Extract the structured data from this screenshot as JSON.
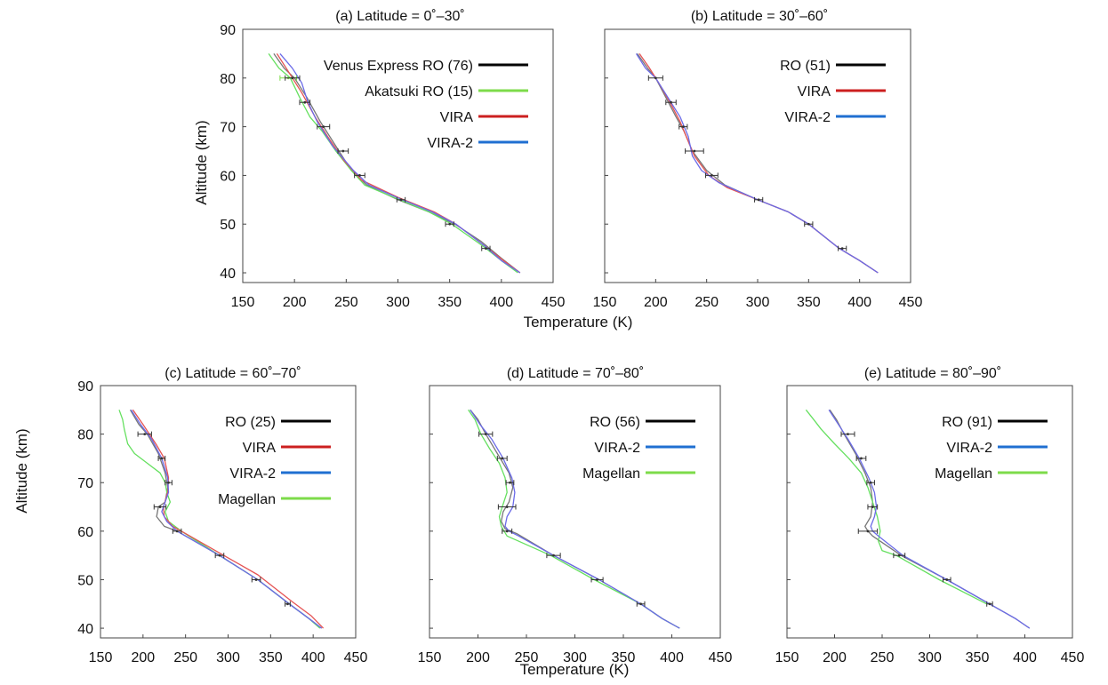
{
  "colors": {
    "RO": "#000000",
    "Akatsuki RO": "#7ddb4a",
    "VIRA": "#cc1f1f",
    "VIRA-2": "#1f6fd1",
    "Magellan": "#7ddb4a",
    "ro_line": "#777777",
    "vira_line": "#e55353",
    "vira2_line": "#6b6be8",
    "magellan_line": "#66e060"
  },
  "chart_data": [
    {
      "type": "line",
      "title": "(a) Latitude = 0˚–30˚",
      "xlabel": "Temperature (K)",
      "ylabel": "Altitude (km)",
      "xlim": [
        150,
        450
      ],
      "ylim": [
        38,
        90
      ],
      "xticks": [
        "150",
        "200",
        "250",
        "300",
        "350",
        "400",
        "450"
      ],
      "yticks": [
        "40",
        "50",
        "60",
        "70",
        "80",
        "90"
      ],
      "legend_position": "top-right",
      "legend": [
        {
          "label": "Venus Express RO (76)",
          "key": "RO"
        },
        {
          "label": "Akatsuki RO (15)",
          "key": "Akatsuki RO"
        },
        {
          "label": "VIRA",
          "key": "VIRA"
        },
        {
          "label": "VIRA-2",
          "key": "VIRA-2"
        }
      ],
      "series": [
        {
          "key": "ro_line",
          "x": [
            180,
            190,
            200,
            212,
            225,
            240,
            255,
            270,
            300,
            330,
            355,
            380,
            400,
            418
          ],
          "y": [
            85,
            82,
            80,
            76,
            71,
            66,
            61,
            58,
            55,
            52.5,
            50,
            46.5,
            43,
            40
          ]
        },
        {
          "key": "magellan_line",
          "x": [
            175,
            185,
            196,
            205,
            215,
            227,
            240,
            255,
            268,
            298,
            330,
            352,
            382,
            400,
            416
          ],
          "y": [
            85,
            82,
            80,
            76,
            72,
            69,
            65,
            61,
            58,
            55.3,
            52.5,
            50,
            45.5,
            42.5,
            40
          ]
        },
        {
          "key": "vira_line",
          "x": [
            183,
            195,
            207,
            220,
            232,
            248,
            265,
            300,
            335,
            356,
            384,
            402,
            418
          ],
          "y": [
            85,
            81,
            77,
            72,
            68,
            63,
            59,
            55.5,
            52.5,
            50,
            45.5,
            42.5,
            40
          ]
        },
        {
          "key": "vira2_line",
          "x": [
            186,
            198,
            207,
            213,
            222,
            237,
            257,
            272,
            302,
            333,
            356,
            384,
            400,
            418
          ],
          "y": [
            85,
            82,
            79,
            75,
            71,
            66,
            61,
            58,
            55.2,
            52.5,
            50,
            45.5,
            42.5,
            40
          ]
        }
      ],
      "errorbars": [
        {
          "y": 80,
          "x": 194,
          "err": 8,
          "key": "Akatsuki RO"
        },
        {
          "y": 80,
          "x": 198,
          "err": 7,
          "key": "RO"
        },
        {
          "y": 75,
          "x": 210,
          "err": 5,
          "key": "RO"
        },
        {
          "y": 70,
          "x": 228,
          "err": 6,
          "key": "RO"
        },
        {
          "y": 65,
          "x": 247,
          "err": 5,
          "key": "RO"
        },
        {
          "y": 60,
          "x": 263,
          "err": 5,
          "key": "RO"
        },
        {
          "y": 55,
          "x": 303,
          "err": 4,
          "key": "RO"
        },
        {
          "y": 50,
          "x": 350,
          "err": 4,
          "key": "RO"
        },
        {
          "y": 45,
          "x": 385,
          "err": 4,
          "key": "RO"
        }
      ]
    },
    {
      "type": "line",
      "title": "(b) Latitude = 30˚–60˚",
      "xlabel": "",
      "ylabel": "",
      "xlim": [
        150,
        450
      ],
      "ylim": [
        38,
        90
      ],
      "xticks": [
        "150",
        "200",
        "250",
        "300",
        "350",
        "400",
        "450"
      ],
      "yticks": [],
      "legend_position": "top-right",
      "legend": [
        {
          "label": "RO (51)",
          "key": "RO"
        },
        {
          "label": "VIRA",
          "key": "VIRA"
        },
        {
          "label": "VIRA-2",
          "key": "VIRA-2"
        }
      ],
      "series": [
        {
          "key": "ro_line",
          "x": [
            182,
            192,
            200,
            210,
            220,
            228,
            236,
            250,
            268,
            300,
            330,
            350,
            380,
            400,
            418
          ],
          "y": [
            85,
            82,
            80,
            76,
            72,
            69,
            65,
            61,
            58,
            55,
            52.5,
            50,
            45,
            42.5,
            40
          ]
        },
        {
          "key": "vira_line",
          "x": [
            184,
            194,
            203,
            214,
            224,
            230,
            238,
            252,
            270,
            300,
            330,
            350,
            380,
            400,
            418
          ],
          "y": [
            85,
            82,
            79,
            75,
            71,
            68,
            64,
            60,
            57.5,
            55,
            52.5,
            50,
            45,
            42.5,
            40
          ]
        },
        {
          "key": "vira2_line",
          "x": [
            181,
            190,
            200,
            212,
            224,
            232,
            236,
            245,
            262,
            300,
            330,
            350,
            380,
            400,
            418
          ],
          "y": [
            85,
            82,
            80,
            76,
            72,
            68,
            64,
            61,
            58.5,
            55,
            52.5,
            50,
            45,
            42.5,
            40
          ]
        }
      ],
      "errorbars": [
        {
          "y": 80,
          "x": 200,
          "err": 7,
          "key": "RO"
        },
        {
          "y": 75,
          "x": 215,
          "err": 5,
          "key": "RO"
        },
        {
          "y": 70,
          "x": 227,
          "err": 4,
          "key": "RO"
        },
        {
          "y": 65,
          "x": 238,
          "err": 9,
          "key": "RO"
        },
        {
          "y": 60,
          "x": 255,
          "err": 6,
          "key": "RO"
        },
        {
          "y": 55,
          "x": 301,
          "err": 4,
          "key": "RO"
        },
        {
          "y": 50,
          "x": 350,
          "err": 4,
          "key": "RO"
        },
        {
          "y": 45,
          "x": 383,
          "err": 4,
          "key": "RO"
        }
      ]
    },
    {
      "type": "line",
      "title": "(c) Latitude = 60˚–70˚",
      "xlabel": "",
      "ylabel": "Altitude (km)",
      "xlim": [
        150,
        450
      ],
      "ylim": [
        38,
        90
      ],
      "xticks": [
        "150",
        "200",
        "250",
        "300",
        "350",
        "400",
        "450"
      ],
      "yticks": [
        "40",
        "50",
        "60",
        "70",
        "80",
        "90"
      ],
      "legend_position": "top-right",
      "legend": [
        {
          "label": "RO (25)",
          "key": "RO"
        },
        {
          "label": "VIRA",
          "key": "VIRA"
        },
        {
          "label": "VIRA-2",
          "key": "VIRA-2"
        },
        {
          "label": "Magellan",
          "key": "Magellan"
        }
      ],
      "series": [
        {
          "key": "ro_line",
          "x": [
            185,
            195,
            205,
            218,
            226,
            229,
            226,
            218,
            216,
            225,
            240,
            290,
            335,
            372,
            395,
            410
          ],
          "y": [
            85,
            82,
            80,
            76,
            72,
            69,
            66,
            65,
            63,
            61,
            60,
            55,
            50,
            45,
            42,
            40
          ]
        },
        {
          "key": "magellan_line",
          "x": [
            172,
            176,
            178,
            182,
            190,
            205,
            220,
            226,
            228,
            232,
            226,
            230,
            245,
            290,
            335,
            372,
            395,
            408
          ],
          "y": [
            85,
            83,
            81,
            78,
            76,
            74,
            72,
            70,
            68,
            66,
            64,
            62,
            60,
            55,
            50,
            45,
            42,
            40
          ]
        },
        {
          "key": "vira_line",
          "x": [
            188,
            200,
            215,
            225,
            230,
            229,
            224,
            225,
            235,
            250,
            290,
            335,
            375,
            398,
            412
          ],
          "y": [
            85,
            82,
            78,
            75,
            71,
            68,
            65,
            63,
            61,
            59.5,
            55.5,
            51,
            45.5,
            42.5,
            40
          ]
        },
        {
          "key": "vira2_line",
          "x": [
            186,
            197,
            210,
            222,
            229,
            230,
            226,
            222,
            228,
            240,
            290,
            335,
            372,
            395,
            410
          ],
          "y": [
            85,
            82,
            79,
            75,
            71,
            68,
            66,
            64,
            62,
            60,
            55,
            50,
            45,
            42,
            40
          ]
        }
      ],
      "errorbars": [
        {
          "y": 80,
          "x": 202,
          "err": 8,
          "key": "RO"
        },
        {
          "y": 75,
          "x": 222,
          "err": 4,
          "key": "RO"
        },
        {
          "y": 70,
          "x": 230,
          "err": 4,
          "key": "RO"
        },
        {
          "y": 65,
          "x": 220,
          "err": 7,
          "key": "RO"
        },
        {
          "y": 60,
          "x": 240,
          "err": 5,
          "key": "RO"
        },
        {
          "y": 55,
          "x": 290,
          "err": 5,
          "key": "RO"
        },
        {
          "y": 50,
          "x": 333,
          "err": 5,
          "key": "RO"
        },
        {
          "y": 45,
          "x": 370,
          "err": 3,
          "key": "RO"
        }
      ]
    },
    {
      "type": "line",
      "title": "(d) Latitude = 70˚–80˚",
      "xlabel": "Temperature (K)",
      "ylabel": "",
      "xlim": [
        150,
        450
      ],
      "ylim": [
        38,
        90
      ],
      "xticks": [
        "150",
        "200",
        "250",
        "300",
        "350",
        "400",
        "450"
      ],
      "yticks": [],
      "legend_position": "top-right",
      "legend": [
        {
          "label": "RO (56)",
          "key": "RO"
        },
        {
          "label": "VIRA-2",
          "key": "VIRA-2"
        },
        {
          "label": "Magellan",
          "key": "Magellan"
        }
      ],
      "series": [
        {
          "key": "ro_line",
          "x": [
            192,
            200,
            208,
            220,
            232,
            236,
            232,
            226,
            224,
            228,
            240,
            278,
            325,
            368,
            390,
            408
          ],
          "y": [
            85,
            83,
            80,
            76,
            72,
            69,
            66,
            64,
            62,
            60.5,
            59.5,
            55,
            50,
            45,
            42,
            40
          ]
        },
        {
          "key": "magellan_line",
          "x": [
            190,
            197,
            203,
            212,
            222,
            228,
            230,
            225,
            222,
            224,
            230,
            275,
            320,
            368,
            390,
            408
          ],
          "y": [
            85,
            83,
            80,
            77,
            74,
            71,
            68,
            65,
            63,
            61,
            59,
            55,
            50,
            45,
            42,
            40
          ]
        },
        {
          "key": "vira2_line",
          "x": [
            192,
            202,
            214,
            226,
            235,
            238,
            236,
            230,
            228,
            232,
            242,
            278,
            325,
            368,
            390,
            408
          ],
          "y": [
            85,
            82,
            79,
            75,
            71,
            68,
            65,
            63,
            61,
            60,
            59,
            55,
            50,
            45,
            42,
            40
          ]
        }
      ],
      "errorbars": [
        {
          "y": 80,
          "x": 208,
          "err": 7,
          "key": "RO"
        },
        {
          "y": 75,
          "x": 225,
          "err": 5,
          "key": "RO"
        },
        {
          "y": 70,
          "x": 233,
          "err": 4,
          "key": "RO"
        },
        {
          "y": 65,
          "x": 230,
          "err": 9,
          "key": "RO"
        },
        {
          "y": 60,
          "x": 230,
          "err": 5,
          "key": "RO"
        },
        {
          "y": 55,
          "x": 278,
          "err": 7,
          "key": "RO"
        },
        {
          "y": 50,
          "x": 323,
          "err": 6,
          "key": "RO"
        },
        {
          "y": 45,
          "x": 368,
          "err": 4,
          "key": "RO"
        }
      ]
    },
    {
      "type": "line",
      "title": "(e) Latitude = 80˚–90˚",
      "xlabel": "",
      "ylabel": "",
      "xlim": [
        150,
        450
      ],
      "ylim": [
        38,
        90
      ],
      "xticks": [
        "150",
        "200",
        "250",
        "300",
        "350",
        "400",
        "450"
      ],
      "yticks": [],
      "legend_position": "top-right",
      "legend": [
        {
          "label": "RO (91)",
          "key": "RO"
        },
        {
          "label": "VIRA-2",
          "key": "VIRA-2"
        },
        {
          "label": "Magellan",
          "key": "Magellan"
        }
      ],
      "series": [
        {
          "key": "ro_line",
          "x": [
            195,
            202,
            210,
            222,
            232,
            238,
            240,
            238,
            232,
            235,
            240,
            270,
            318,
            363,
            390,
            405
          ],
          "y": [
            85,
            83,
            80,
            76,
            72,
            69,
            66,
            63,
            61,
            60,
            59,
            55,
            50,
            45,
            42,
            40
          ]
        },
        {
          "key": "magellan_line",
          "x": [
            170,
            178,
            186,
            200,
            215,
            228,
            235,
            240,
            245,
            248,
            246,
            250,
            265,
            310,
            360
          ],
          "y": [
            85,
            83,
            81,
            78,
            75,
            72,
            69,
            66,
            63,
            60,
            58,
            56,
            55,
            50,
            45
          ]
        },
        {
          "key": "vira2_line",
          "x": [
            194,
            204,
            214,
            226,
            236,
            242,
            244,
            242,
            238,
            240,
            246,
            272,
            318,
            363,
            390,
            405
          ],
          "y": [
            85,
            82,
            79,
            75,
            71,
            68,
            65,
            63,
            61,
            60,
            59,
            55,
            50,
            45,
            42,
            40
          ]
        }
      ],
      "errorbars": [
        {
          "y": 80,
          "x": 214,
          "err": 7,
          "key": "RO"
        },
        {
          "y": 75,
          "x": 228,
          "err": 5,
          "key": "RO"
        },
        {
          "y": 70,
          "x": 238,
          "err": 4,
          "key": "RO"
        },
        {
          "y": 65,
          "x": 240,
          "err": 5,
          "key": "RO"
        },
        {
          "y": 60,
          "x": 235,
          "err": 10,
          "key": "RO"
        },
        {
          "y": 55,
          "x": 268,
          "err": 6,
          "key": "RO"
        },
        {
          "y": 50,
          "x": 318,
          "err": 4,
          "key": "RO"
        },
        {
          "y": 45,
          "x": 363,
          "err": 3,
          "key": "RO"
        }
      ]
    }
  ]
}
